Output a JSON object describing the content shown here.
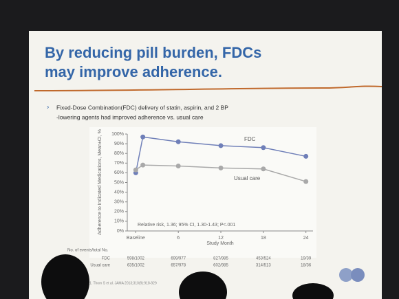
{
  "slide": {
    "title": [
      "By reducing pill burden, FDCs",
      "may improve adherence."
    ],
    "bullet": [
      "Fixed-Dose Combination(FDC) delivery of statin, aspirin, and 2 BP",
      "-lowering agents had improved adherence vs. usual care"
    ],
    "footnote": "1. Thom S et al. JAMA 2013;310(9):918-929"
  },
  "chart_data": {
    "type": "line",
    "y_label": "Adherence to Indicated Medications, Mean±CI, %",
    "x_label": "Study Month",
    "annotation": "Relative risk, 1.36; 95% CI, 1.30-1.43; P<.001",
    "x": [
      0,
      1,
      6,
      12,
      18,
      24
    ],
    "xlim": [
      -1.2,
      25
    ],
    "xticks": [
      {
        "value": 0,
        "label": "Baseline"
      },
      6,
      12,
      18,
      24
    ],
    "ylim": [
      0,
      100
    ],
    "yticks": [
      {
        "value": 0,
        "label": "0%"
      },
      {
        "value": 10,
        "label": "10%"
      },
      {
        "value": 20,
        "label": "20%"
      },
      {
        "value": 30,
        "label": "30%"
      },
      {
        "value": 40,
        "label": "40%"
      },
      {
        "value": 50,
        "label": "50%"
      },
      {
        "value": 60,
        "label": "60%"
      },
      {
        "value": 70,
        "label": "70%"
      },
      {
        "value": 80,
        "label": "80%"
      },
      {
        "value": 90,
        "label": "90%"
      },
      {
        "value": 100,
        "label": "100%"
      }
    ],
    "series": [
      {
        "name": "FDC",
        "color": "#6f7fb8",
        "values": [
          60,
          97,
          92,
          88,
          86,
          77
        ]
      },
      {
        "name": "Usual care",
        "color": "#a9a9a9",
        "values": [
          63,
          68,
          67,
          65,
          64,
          51
        ]
      }
    ]
  },
  "risk_table": {
    "header": "No. of events/total No.",
    "rows": [
      {
        "label": "FDC",
        "values": [
          "598/1002",
          "699/977",
          "827/985",
          "453/524",
          "19/39"
        ]
      },
      {
        "label": "Usual care",
        "values": [
          "635/1002",
          "657/978",
          "602/985",
          "314/513",
          "18/36"
        ]
      }
    ]
  }
}
